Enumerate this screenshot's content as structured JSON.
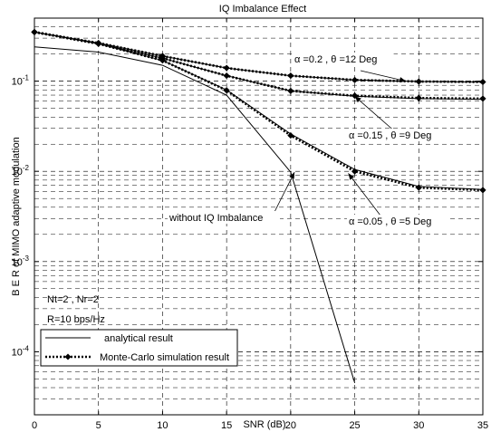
{
  "chart_data": {
    "type": "line",
    "title": "IQ Imbalance Effect",
    "xlabel": "SNR (dB)",
    "ylabel": "B E R of MIMO adaptive modulation",
    "xlim": [
      0,
      35
    ],
    "ylim": [
      2e-05,
      0.5
    ],
    "yscale": "log",
    "xticks": [
      0,
      5,
      10,
      15,
      20,
      25,
      30,
      35
    ],
    "yticks": [
      {
        "value": 0.1,
        "base": "10",
        "exp": "-1"
      },
      {
        "value": 0.01,
        "base": "10",
        "exp": "-2"
      },
      {
        "value": 0.001,
        "base": "10",
        "exp": "-3"
      },
      {
        "value": 0.0001,
        "base": "10",
        "exp": "-4"
      }
    ],
    "grid": true,
    "legend_position": "bottom-left",
    "legend": [
      {
        "label": "analytical result",
        "style": "solid"
      },
      {
        "label": "Monte-Carlo simulation result",
        "style": "dotted-diamond"
      }
    ],
    "series": [
      {
        "style": "solid",
        "x": [
          0,
          5,
          10,
          15,
          20,
          25
        ],
        "y": [
          0.24,
          0.21,
          0.15,
          0.07,
          0.0098,
          4.5e-05
        ]
      },
      {
        "style": "solid",
        "x": [
          0,
          5,
          10,
          15,
          20,
          25,
          30,
          35
        ],
        "y": [
          0.35,
          0.26,
          0.17,
          0.08,
          0.026,
          0.0105,
          0.0068,
          0.0063
        ]
      },
      {
        "style": "solid",
        "x": [
          0,
          5,
          10,
          15,
          20,
          25,
          30,
          35
        ],
        "y": [
          0.35,
          0.26,
          0.18,
          0.115,
          0.078,
          0.068,
          0.064,
          0.063
        ]
      },
      {
        "style": "solid",
        "x": [
          0,
          5,
          10,
          15,
          20,
          25,
          30,
          35
        ],
        "y": [
          0.35,
          0.265,
          0.19,
          0.14,
          0.115,
          0.103,
          0.099,
          0.098
        ]
      },
      {
        "style": "dotted-diamond",
        "x": [
          0,
          5,
          10,
          15,
          20,
          25,
          30,
          35
        ],
        "y": [
          0.35,
          0.26,
          0.17,
          0.079,
          0.025,
          0.01,
          0.0066,
          0.0062
        ]
      },
      {
        "style": "dotted-diamond",
        "x": [
          0,
          5,
          10,
          15,
          20,
          25,
          30,
          35
        ],
        "y": [
          0.35,
          0.26,
          0.18,
          0.115,
          0.078,
          0.069,
          0.065,
          0.064
        ]
      },
      {
        "style": "dotted-diamond",
        "x": [
          0,
          5,
          10,
          15,
          20,
          25,
          30,
          35
        ],
        "y": [
          0.35,
          0.265,
          0.19,
          0.14,
          0.115,
          0.103,
          0.099,
          0.098
        ]
      }
    ],
    "annotations": [
      {
        "text": "α =0.2 , θ =12 Deg",
        "target": [
          29,
          0.1
        ],
        "anchor": [
          27,
          0.2
        ]
      },
      {
        "text": "α =0.15 , θ =9 Deg",
        "target": [
          25,
          0.068
        ],
        "anchor": [
          28.5,
          0.035
        ]
      },
      {
        "text": "α =0.05 , θ =5 Deg",
        "target": [
          24.5,
          0.0095
        ],
        "anchor": [
          27,
          0.0045
        ]
      },
      {
        "text": "without IQ Imbalance",
        "target": [
          20.3,
          0.0098
        ],
        "anchor": [
          18,
          0.0055
        ]
      }
    ],
    "text_labels": [
      "Nt=2 , Nr=2",
      "R=10 bps/Hz"
    ]
  }
}
